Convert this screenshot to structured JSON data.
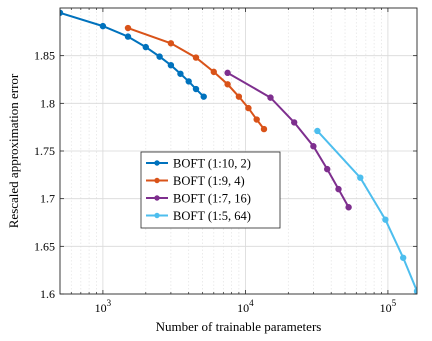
{
  "chart_data": {
    "type": "line",
    "xscale": "log",
    "xlabel": "Number of trainable parameters",
    "ylabel": "Rescaled approximation error",
    "xlim": [
      500,
      160000
    ],
    "ylim": [
      1.6,
      1.9
    ],
    "xticks": [
      {
        "value": 1000,
        "base": "10",
        "exp": "3"
      },
      {
        "value": 10000,
        "base": "10",
        "exp": "4"
      },
      {
        "value": 100000,
        "base": "10",
        "exp": "5"
      }
    ],
    "yticks": [
      {
        "value": 1.6,
        "label": "1.6"
      },
      {
        "value": 1.65,
        "label": "1.65"
      },
      {
        "value": 1.7,
        "label": "1.7"
      },
      {
        "value": 1.75,
        "label": "1.75"
      },
      {
        "value": 1.8,
        "label": "1.8"
      },
      {
        "value": 1.85,
        "label": "1.85"
      }
    ],
    "grid": true,
    "legend_position": "center-left",
    "series": [
      {
        "name": "BOFT (1:10, 2)",
        "color": "#0072BD",
        "points": [
          [
            500,
            1.895
          ],
          [
            1000,
            1.881
          ],
          [
            1500,
            1.87
          ],
          [
            2000,
            1.859
          ],
          [
            2500,
            1.849
          ],
          [
            3000,
            1.84
          ],
          [
            3500,
            1.831
          ],
          [
            4000,
            1.823
          ],
          [
            4500,
            1.815
          ],
          [
            5100,
            1.807
          ]
        ]
      },
      {
        "name": "BOFT (1:9, 4)",
        "color": "#D95319",
        "points": [
          [
            1500,
            1.879
          ],
          [
            3000,
            1.863
          ],
          [
            4500,
            1.848
          ],
          [
            6000,
            1.833
          ],
          [
            7500,
            1.82
          ],
          [
            9000,
            1.807
          ],
          [
            10500,
            1.795
          ],
          [
            12000,
            1.783
          ],
          [
            13500,
            1.773
          ]
        ]
      },
      {
        "name": "BOFT (1:7, 16)",
        "color": "#7E2F8E",
        "points": [
          [
            7500,
            1.832
          ],
          [
            15000,
            1.806
          ],
          [
            22000,
            1.78
          ],
          [
            30000,
            1.755
          ],
          [
            37500,
            1.731
          ],
          [
            45000,
            1.71
          ],
          [
            53000,
            1.691
          ]
        ]
      },
      {
        "name": "BOFT (1:5, 64)",
        "color": "#4DBEEE",
        "points": [
          [
            32000,
            1.771
          ],
          [
            64000,
            1.722
          ],
          [
            96000,
            1.678
          ],
          [
            128000,
            1.638
          ],
          [
            160000,
            1.603
          ]
        ]
      }
    ]
  }
}
